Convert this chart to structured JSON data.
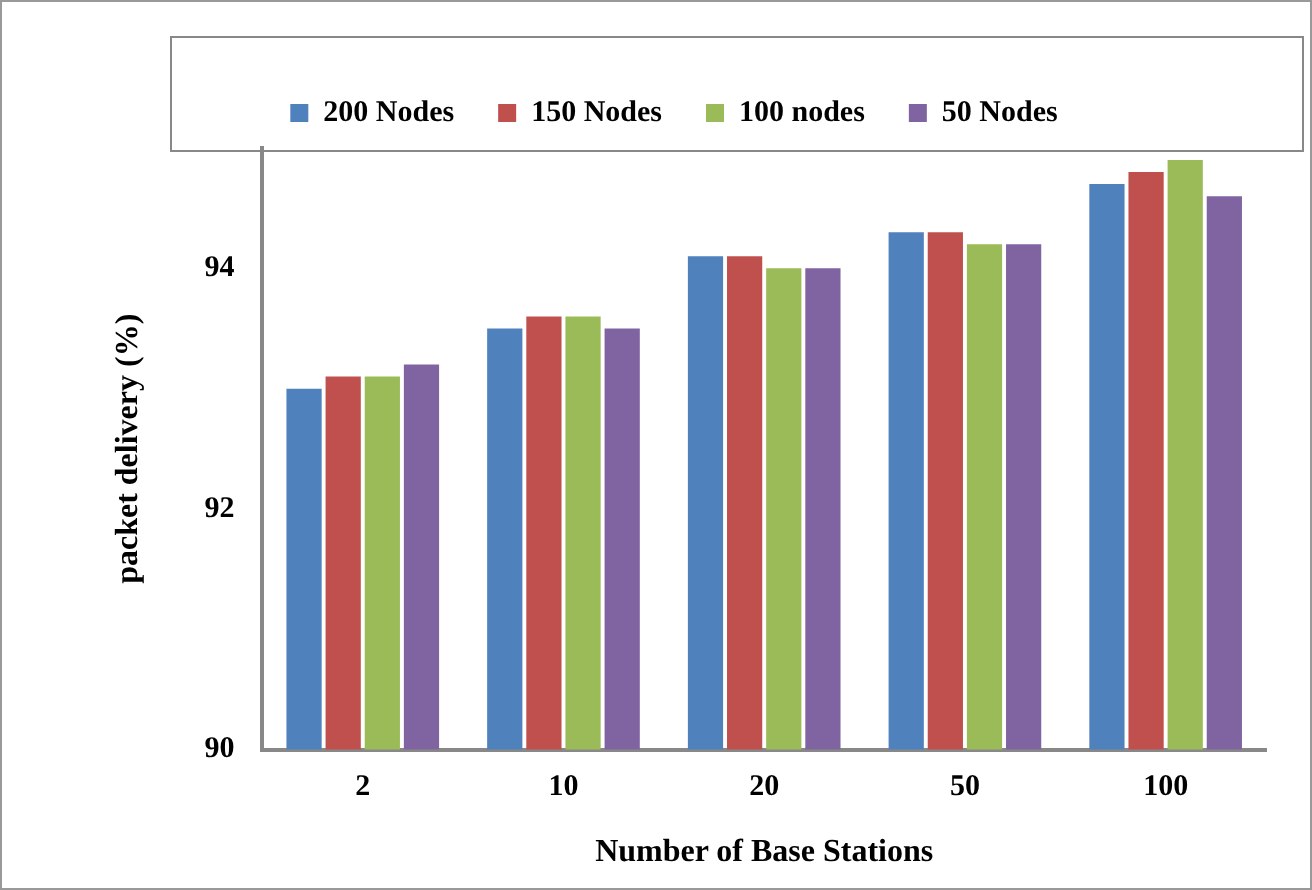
{
  "chart_data": {
    "type": "bar",
    "xlabel": "Number of Base Stations",
    "ylabel": "packet delivery (%)",
    "categories": [
      "2",
      "10",
      "20",
      "50",
      "100"
    ],
    "series": [
      {
        "name": "200 Nodes",
        "color": "#4f81bd",
        "values": [
          93.0,
          93.5,
          94.1,
          94.3,
          94.7
        ]
      },
      {
        "name": "150 Nodes",
        "color": "#c0504d",
        "values": [
          93.1,
          93.6,
          94.1,
          94.3,
          94.8
        ]
      },
      {
        "name": "100 nodes",
        "color": "#9bbb59",
        "values": [
          93.1,
          93.6,
          94.0,
          94.2,
          94.9
        ]
      },
      {
        "name": "50 Nodes",
        "color": "#8064a2",
        "values": [
          93.2,
          93.5,
          94.0,
          94.2,
          94.6
        ]
      }
    ],
    "ylim": [
      90,
      95
    ],
    "yticks": [
      90,
      92,
      94
    ],
    "grid": false,
    "legend": "top"
  }
}
